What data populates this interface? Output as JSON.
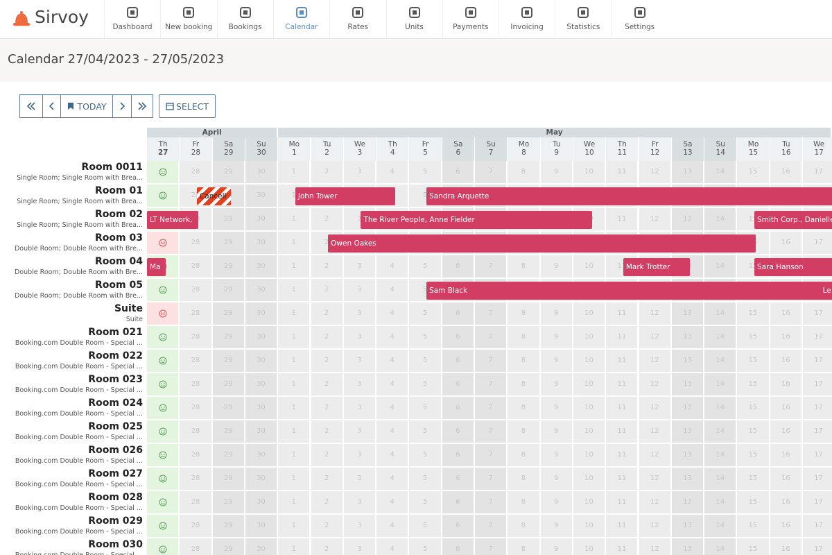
{
  "app": {
    "logo": "Sirvoy",
    "nav": [
      {
        "label": "Dashboard"
      },
      {
        "label": "New booking"
      },
      {
        "label": "Bookings"
      },
      {
        "label": "Calendar",
        "active": true
      },
      {
        "label": "Rates"
      },
      {
        "label": "Units"
      },
      {
        "label": "Payments"
      },
      {
        "label": "Invoicing"
      },
      {
        "label": "Statistics"
      },
      {
        "label": "Settings"
      }
    ]
  },
  "page": {
    "title": "Calendar 27/04/2023 - 27/05/2023"
  },
  "toolbar": {
    "today": "TODAY",
    "select": "SELECT"
  },
  "calendar": {
    "months": [
      {
        "name": "April",
        "days": [
          {
            "weekday": "Th",
            "date": 27
          },
          {
            "weekday": "Fr",
            "date": 28
          },
          {
            "weekday": "Sa",
            "date": 29
          },
          {
            "weekday": "Su",
            "date": 30
          }
        ]
      },
      {
        "name": "May",
        "days": [
          {
            "weekday": "Mo",
            "date": 1
          },
          {
            "weekday": "Tu",
            "date": 2
          },
          {
            "weekday": "We",
            "date": 3
          },
          {
            "weekday": "Th",
            "date": 4
          },
          {
            "weekday": "Fr",
            "date": 5
          },
          {
            "weekday": "Sa",
            "date": 6
          },
          {
            "weekday": "Su",
            "date": 7
          },
          {
            "weekday": "Mo",
            "date": 8
          },
          {
            "weekday": "Tu",
            "date": 9
          },
          {
            "weekday": "We",
            "date": 10
          },
          {
            "weekday": "Th",
            "date": 11
          },
          {
            "weekday": "Fr",
            "date": 12
          },
          {
            "weekday": "Sa",
            "date": 13
          },
          {
            "weekday": "Su",
            "date": 14
          },
          {
            "weekday": "Mo",
            "date": 15
          },
          {
            "weekday": "Tu",
            "date": 16
          },
          {
            "weekday": "We",
            "date": 17
          }
        ]
      }
    ],
    "rooms": [
      {
        "name": "Room 0011",
        "description": "Single Room; Single Room with Brea...",
        "status": "available",
        "bookings": []
      },
      {
        "name": "Room 01",
        "description": "Single Room; Single Room with Brea...",
        "status": "available",
        "bookings": [
          {
            "guest": "Cancell",
            "from": 28,
            "to": 29,
            "status": "cancelled"
          },
          {
            "guest": "John Tower",
            "from": 1,
            "to": 4
          },
          {
            "guest": "Sandra Arquette",
            "from": 5,
            "to": null
          }
        ]
      },
      {
        "name": "Room 02",
        "description": "Single Room; Single Room with Brea...",
        "status": "available",
        "bookings": [
          {
            "guest": "LT Network,",
            "from": null,
            "to": 28
          },
          {
            "guest": "The River People, Anne Fielder",
            "from": 3,
            "to": 10
          },
          {
            "guest": "Smith Corp., Danielle",
            "from": 15,
            "to": null
          }
        ]
      },
      {
        "name": "Room 03",
        "description": "Double Room; Double Room with Bre...",
        "status": "unavailable",
        "bookings": [
          {
            "guest": "Owen Oakes",
            "from": 2,
            "to": 15
          }
        ]
      },
      {
        "name": "Room 04",
        "description": "Double Room; Double Room with Bre...",
        "status": "available",
        "bookings": [
          {
            "guest": "Ma",
            "from": null,
            "to": 27
          },
          {
            "guest": "Mark Trotter",
            "from": 11,
            "to": 13
          },
          {
            "guest": "Sara Hanson",
            "from": 15,
            "to": null
          }
        ]
      },
      {
        "name": "Room 05",
        "description": "Double Room; Double Room with Bre...",
        "status": "available",
        "bookings": [
          {
            "guest": "Sam Black",
            "from": 5,
            "to": 17
          },
          {
            "guest": "Le",
            "from": 17,
            "to": null
          }
        ]
      },
      {
        "name": "Suite",
        "description": "Suite",
        "status": "unavailable",
        "bookings": []
      },
      {
        "name": "Room 021",
        "description": "Booking.com Double Room - Special ...",
        "status": "available",
        "bookings": []
      },
      {
        "name": "Room 022",
        "description": "Booking.com Double Room - Special ...",
        "status": "available",
        "bookings": []
      },
      {
        "name": "Room 023",
        "description": "Booking.com Double Room - Special ...",
        "status": "available",
        "bookings": []
      },
      {
        "name": "Room 024",
        "description": "Booking.com Double Room - Special ...",
        "status": "available",
        "bookings": []
      },
      {
        "name": "Room 025",
        "description": "Booking.com Double Room - Special ...",
        "status": "available",
        "bookings": []
      },
      {
        "name": "Room 026",
        "description": "Booking.com Double Room - Special ...",
        "status": "available",
        "bookings": []
      },
      {
        "name": "Room 027",
        "description": "Booking.com Double Room - Special ...",
        "status": "available",
        "bookings": []
      },
      {
        "name": "Room 028",
        "description": "Booking.com Double Room - Special ...",
        "status": "available",
        "bookings": []
      },
      {
        "name": "Room 029",
        "description": "Booking.com Double Room - Special ...",
        "status": "available",
        "bookings": []
      },
      {
        "name": "Room 030",
        "description": "Booking.com Double Room - Special ...",
        "status": "available",
        "bookings": []
      }
    ]
  }
}
